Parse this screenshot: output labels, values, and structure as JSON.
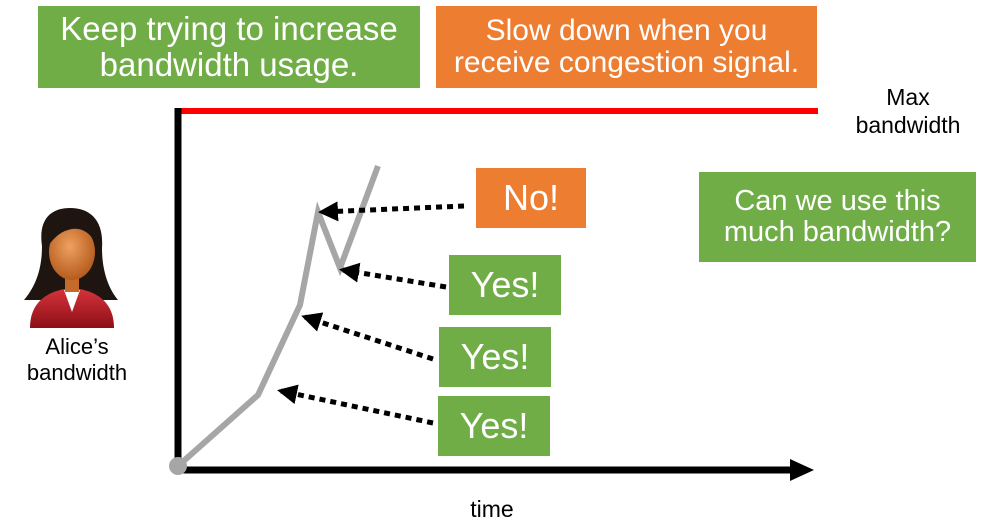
{
  "callouts": {
    "keep_trying": "Keep trying to increase bandwidth usage.",
    "slow_down": "Slow down when you receive congestion signal.",
    "question": "Can we use this much bandwidth?"
  },
  "responses": [
    "Yes!",
    "Yes!",
    "Yes!",
    "No!"
  ],
  "labels": {
    "max_bandwidth": "Max bandwidth",
    "alice_bandwidth": "Alice’s bandwidth",
    "time_axis": "time"
  },
  "colors": {
    "green": "#70ad47",
    "orange": "#ed7d31",
    "max_line": "#ff0000",
    "usage_line": "#a6a6a6",
    "axis": "#000000"
  },
  "icons": {
    "user": "woman-user-icon"
  }
}
